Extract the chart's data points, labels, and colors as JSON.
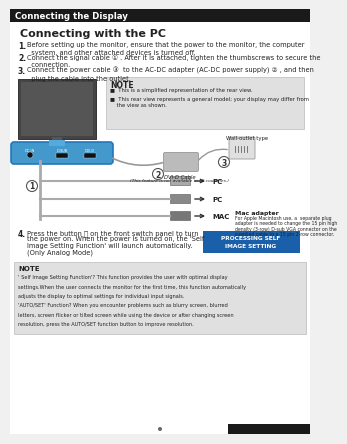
{
  "page_title": "Connecting the Display",
  "section_title": "Connecting with the PC",
  "header_bg": "#1a1a1a",
  "header_text_color": "#ffffff",
  "bg_color": "#f0f0f0",
  "body_text_color": "#222222",
  "step1": "Before setting up the monitor, ensure that the power to the monitor, the computer\n  system, and other attached devices is turned off.",
  "step2": "Connect the signal cable ① . After it is attached, tighten the thumbscrews to secure the\n  connection.",
  "step3": "Connect the power cable ③  to the AC-DC adapter (AC-DC power supply) ② , and then\n  plug the cable into the outlet.",
  "step4": "Press the button ⏻ on the front switch panel to turn\nthe power on. When the power is turned on, the 'Self\nImage Setting Function' will launch automatically.\n(Only Analog Mode)",
  "note_box_color": "#e0e0e0",
  "note_title": "NOTE",
  "note_bullets": [
    "■  This is a simplified representation of the rear view.",
    "■  This rear view represents a general model; your display may differ from\n    the view as shown."
  ],
  "note2_title": "NOTE",
  "note2_line1": "' Self Image Setting Function'? This function provides the user with optimal display",
  "note2_line2": "settings.When the user connects the monitor for the first time, this function automatically",
  "note2_line3": "adjusts the display to optimal settings for individual input signals.",
  "note2_line4": "'AUTO/SET' Function? When you encounter problems such as blurry screen, blurred",
  "note2_line5": "letters, screen flicker or tilted screen while using the device or after changing screen",
  "note2_line6": "resolution, press the AUTO/SET function button to improve resolution.",
  "btn_box_color": "#1a5faa",
  "btn_text1": "PROCESSING SELF",
  "btn_text2": "IMAGE SETTING",
  "connector_labels": [
    "DC-IN",
    "D-SUB",
    "DVI-D"
  ],
  "cable_note1": "DVI-D Cable",
  "cable_note2": "(This feature is not available in all countries.)",
  "mac_adapter_title": "Mac adapter",
  "mac_adapter_text1": "For Apple Macintosh use, a  separate plug",
  "mac_adapter_text2": "adapter is needed to change the 15 pin high",
  "mac_adapter_text3": "density (3-row) D-sub VGA connector on the",
  "mac_adapter_text4": "supplied cable to a 15 pin 2-row connector.",
  "wall_outlet_label": "Wall-outlet type",
  "footer_bar_color": "#1a1a1a",
  "monitor_dark": "#444444",
  "monitor_mid": "#666666",
  "monitor_light": "#888888",
  "panel_blue": "#4499cc",
  "cable_color": "#aaaaaa",
  "connector_color": "#999999"
}
